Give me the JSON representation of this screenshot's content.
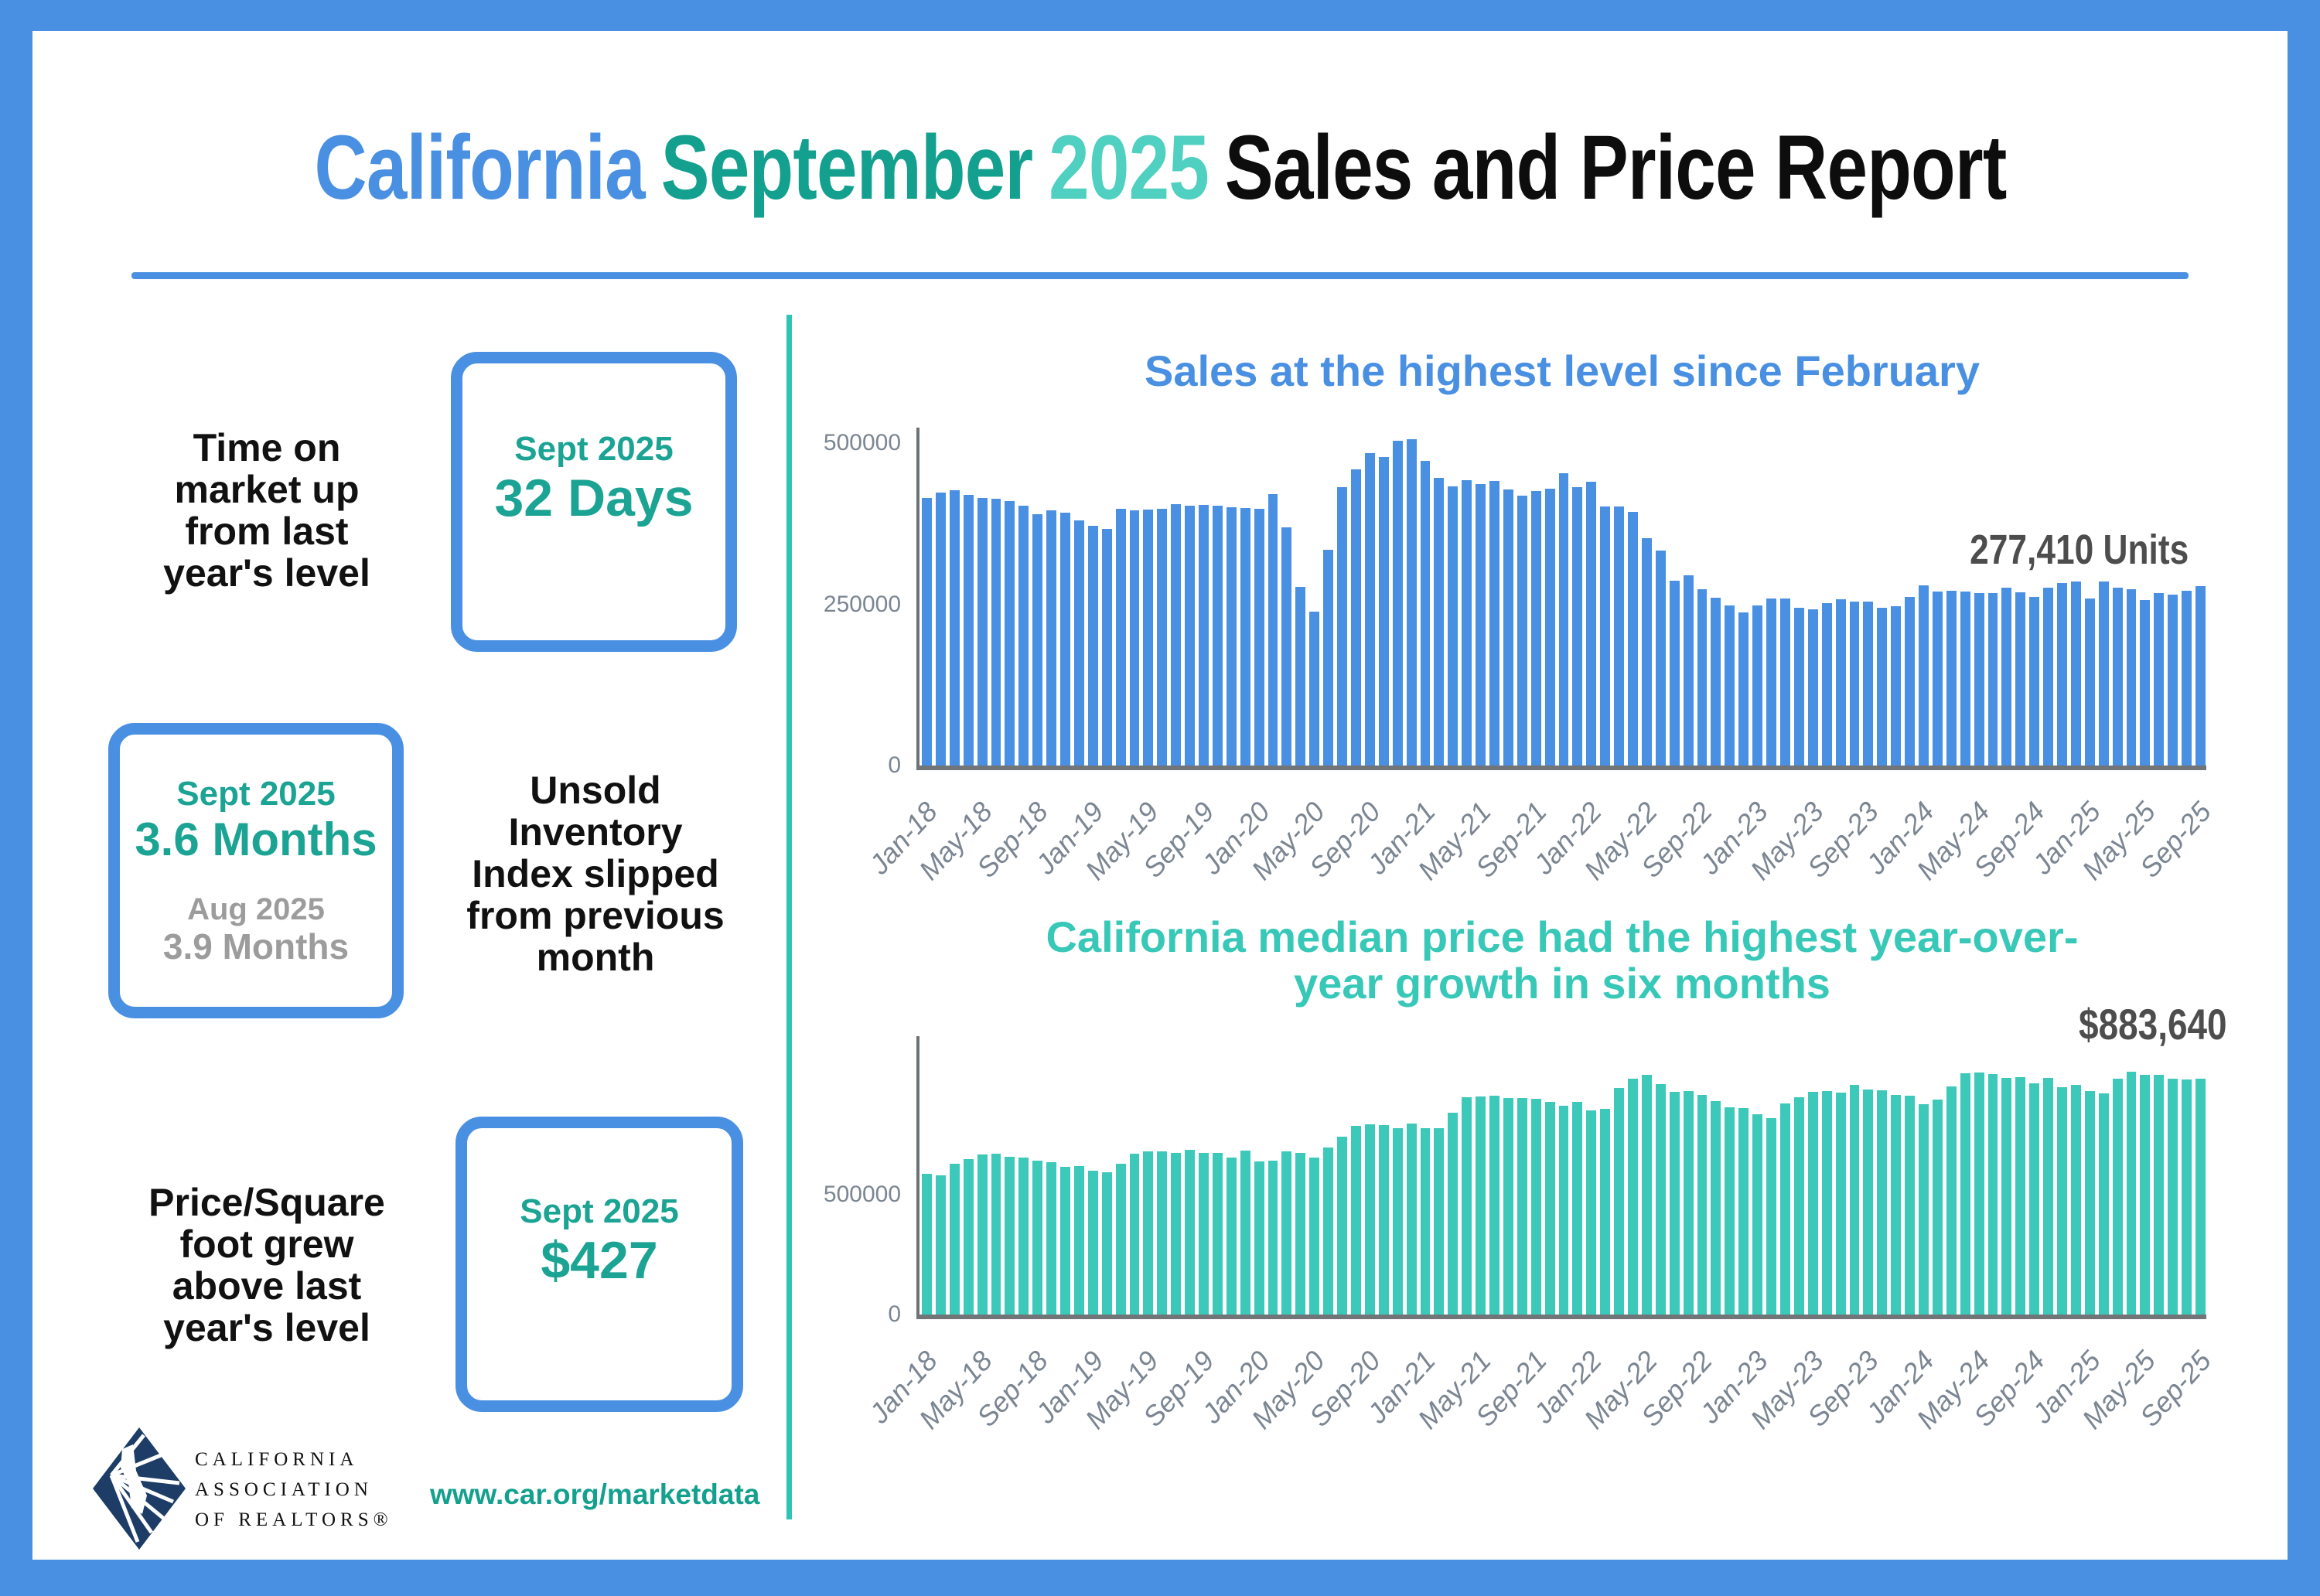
{
  "title": {
    "part1": "California",
    "part2": "September",
    "part3": "2025",
    "part4": "Sales and Price Report"
  },
  "stats": [
    {
      "label": "Time on market up from last year's level",
      "label_lines": [
        "Time on",
        "market up",
        "from last",
        "year's level"
      ],
      "box": {
        "period": "Sept 2025",
        "value": "32 Days"
      }
    },
    {
      "label": "Unsold Inventory Index slipped from previous month",
      "label_lines": [
        "Unsold",
        "Inventory",
        "Index slipped",
        "from previous",
        "month"
      ],
      "box": {
        "period": "Sept 2025",
        "value": "3.6 Months",
        "prev_period": "Aug 2025",
        "prev_value": "3.9 Months"
      }
    },
    {
      "label": "Price/Square foot grew above last year's level",
      "label_lines": [
        "Price/Square",
        "foot grew",
        "above last",
        "year's level"
      ],
      "box": {
        "period": "Sept 2025",
        "value": "$427"
      }
    }
  ],
  "footer": {
    "logo_lines": [
      "CALIFORNIA",
      "ASSOCIATION",
      "OF REALTORS®"
    ],
    "url": "www.car.org/marketdata"
  },
  "colors": {
    "accent_blue": "#4a90e2",
    "accent_teal_dark": "#13a08e",
    "accent_teal_light": "#4fd0c0",
    "stat_teal": "#1ba393",
    "divider_teal": "#2ec4b6",
    "gray_text": "#9c9c9c",
    "axis_gray": "#717577",
    "label_gray": "#7b8692",
    "annotation_gray": "#4d4d4d",
    "logo_navy": "#1d3d66"
  },
  "chart_data": [
    {
      "id": "sales",
      "type": "bar",
      "title": "Sales at the highest level since February",
      "annotation": "277,410 Units",
      "bar_color": "#4a90e2",
      "ylabel_ticks": [
        "500000",
        "250000",
        "0"
      ],
      "ylim": [
        0,
        520000
      ],
      "grid": false,
      "legend": "none",
      "xticks": [
        "Jan-18",
        "May-18",
        "Sep-18",
        "Jan-19",
        "May-19",
        "Sep-19",
        "Jan-20",
        "May-20",
        "Sep-20",
        "Jan-21",
        "May-21",
        "Sep-21",
        "Jan-22",
        "May-22",
        "Sep-22",
        "Jan-23",
        "May-23",
        "Sep-23",
        "Jan-24",
        "May-24",
        "Sep-24",
        "Jan-25",
        "May-25",
        "Sep-25"
      ],
      "x": [
        "Jan-18",
        "Feb-18",
        "Mar-18",
        "Apr-18",
        "May-18",
        "Jun-18",
        "Jul-18",
        "Aug-18",
        "Sep-18",
        "Oct-18",
        "Nov-18",
        "Dec-18",
        "Jan-19",
        "Feb-19",
        "Mar-19",
        "Apr-19",
        "May-19",
        "Jun-19",
        "Jul-19",
        "Aug-19",
        "Sep-19",
        "Oct-19",
        "Nov-19",
        "Dec-19",
        "Jan-20",
        "Feb-20",
        "Mar-20",
        "Apr-20",
        "May-20",
        "Jun-20",
        "Jul-20",
        "Aug-20",
        "Sep-20",
        "Oct-20",
        "Nov-20",
        "Dec-20",
        "Jan-21",
        "Feb-21",
        "Mar-21",
        "Apr-21",
        "May-21",
        "Jun-21",
        "Jul-21",
        "Aug-21",
        "Sep-21",
        "Oct-21",
        "Nov-21",
        "Dec-21",
        "Jan-22",
        "Feb-22",
        "Mar-22",
        "Apr-22",
        "May-22",
        "Jun-22",
        "Jul-22",
        "Aug-22",
        "Sep-22",
        "Oct-22",
        "Nov-22",
        "Dec-22",
        "Jan-23",
        "Feb-23",
        "Mar-23",
        "Apr-23",
        "May-23",
        "Jun-23",
        "Jul-23",
        "Aug-23",
        "Sep-23",
        "Oct-23",
        "Nov-23",
        "Dec-23",
        "Jan-24",
        "Feb-24",
        "Mar-24",
        "Apr-24",
        "May-24",
        "Jun-24",
        "Jul-24",
        "Aug-24",
        "Sep-24",
        "Oct-24",
        "Nov-24",
        "Dec-24",
        "Jan-25",
        "Feb-25",
        "Mar-25",
        "Apr-25",
        "May-25",
        "Jun-25",
        "Jul-25",
        "Aug-25",
        "Sep-25"
      ],
      "values": [
        414000,
        422000,
        425000,
        419000,
        414000,
        413000,
        409000,
        402000,
        388000,
        394000,
        391000,
        379000,
        371000,
        366000,
        397000,
        395000,
        396000,
        397000,
        404000,
        402000,
        403000,
        402000,
        399000,
        398000,
        397000,
        420000,
        368000,
        276000,
        238000,
        333000,
        430000,
        458000,
        483000,
        477000,
        502000,
        505000,
        471000,
        445000,
        432000,
        441000,
        435000,
        440000,
        427000,
        417000,
        424000,
        428000,
        452000,
        430000,
        439000,
        400000,
        400000,
        392000,
        352000,
        332000,
        286000,
        294000,
        273000,
        259000,
        248000,
        237000,
        247000,
        258000,
        258000,
        244000,
        241000,
        251000,
        257000,
        253000,
        254000,
        244000,
        246000,
        261000,
        278000,
        269000,
        270000,
        269000,
        267000,
        266000,
        275000,
        268000,
        261000,
        275000,
        282000,
        285000,
        258000,
        284000,
        275000,
        272000,
        256000,
        267000,
        264000,
        270000,
        277410
      ]
    },
    {
      "id": "price",
      "type": "bar",
      "title": "California median price had the highest year-over-year growth in six months",
      "title_lines": [
        "California median price had the highest year-over-",
        "year growth in six months"
      ],
      "annotation": "$883,640",
      "bar_color": "#3cc9b9",
      "ylabel_ticks": [
        "500000",
        "0"
      ],
      "ylim": [
        0,
        1000000
      ],
      "grid": false,
      "legend": "none",
      "xticks": [
        "Jan-18",
        "May-18",
        "Sep-18",
        "Jan-19",
        "May-19",
        "Sep-19",
        "Jan-20",
        "May-20",
        "Sep-20",
        "Jan-21",
        "May-21",
        "Sep-21",
        "Jan-22",
        "May-22",
        "Sep-22",
        "Jan-23",
        "May-23",
        "Sep-23",
        "Jan-24",
        "May-24",
        "Sep-24",
        "Jan-25",
        "May-25",
        "Sep-25"
      ],
      "x": [
        "Jan-18",
        "Feb-18",
        "Mar-18",
        "Apr-18",
        "May-18",
        "Jun-18",
        "Jul-18",
        "Aug-18",
        "Sep-18",
        "Oct-18",
        "Nov-18",
        "Dec-18",
        "Jan-19",
        "Feb-19",
        "Mar-19",
        "Apr-19",
        "May-19",
        "Jun-19",
        "Jul-19",
        "Aug-19",
        "Sep-19",
        "Oct-19",
        "Nov-19",
        "Dec-19",
        "Jan-20",
        "Feb-20",
        "Mar-20",
        "Apr-20",
        "May-20",
        "Jun-20",
        "Jul-20",
        "Aug-20",
        "Sep-20",
        "Oct-20",
        "Nov-20",
        "Dec-20",
        "Jan-21",
        "Feb-21",
        "Mar-21",
        "Apr-21",
        "May-21",
        "Jun-21",
        "Jul-21",
        "Aug-21",
        "Sep-21",
        "Oct-21",
        "Nov-21",
        "Dec-21",
        "Jan-22",
        "Feb-22",
        "Mar-22",
        "Apr-22",
        "May-22",
        "Jun-22",
        "Jul-22",
        "Aug-22",
        "Sep-22",
        "Oct-22",
        "Nov-22",
        "Dec-22",
        "Jan-23",
        "Feb-23",
        "Mar-23",
        "Apr-23",
        "May-23",
        "Jun-23",
        "Jul-23",
        "Aug-23",
        "Sep-23",
        "Oct-23",
        "Nov-23",
        "Dec-23",
        "Jan-24",
        "Feb-24",
        "Mar-24",
        "Apr-24",
        "May-24",
        "Jun-24",
        "Jul-24",
        "Aug-24",
        "Sep-24",
        "Oct-24",
        "Nov-24",
        "Dec-24",
        "Jan-25",
        "Feb-25",
        "Mar-25",
        "Apr-25",
        "May-25",
        "Jun-25",
        "Jul-25",
        "Aug-25",
        "Sep-25"
      ],
      "values": [
        527000,
        522000,
        564000,
        584000,
        600000,
        602000,
        591000,
        588000,
        578000,
        572000,
        554000,
        557000,
        538000,
        534000,
        565000,
        602000,
        611000,
        611000,
        607000,
        617000,
        605000,
        605000,
        589000,
        615000,
        575000,
        578000,
        612000,
        606000,
        588000,
        626000,
        666000,
        706000,
        712000,
        711000,
        699000,
        717000,
        699000,
        699000,
        758000,
        814000,
        818000,
        819000,
        811000,
        811000,
        808000,
        798000,
        782000,
        796000,
        765000,
        771000,
        849000,
        884000,
        898000,
        864000,
        834000,
        839000,
        822000,
        801000,
        777000,
        775000,
        751000,
        735000,
        791000,
        815000,
        836000,
        838000,
        832000,
        860000,
        843000,
        840000,
        822000,
        820000,
        789000,
        806000,
        854000,
        904000,
        908000,
        901000,
        887000,
        889000,
        868000,
        887000,
        853000,
        861000,
        839000,
        829000,
        884000,
        910000,
        900000,
        900000,
        884000,
        880000,
        883640
      ]
    }
  ]
}
